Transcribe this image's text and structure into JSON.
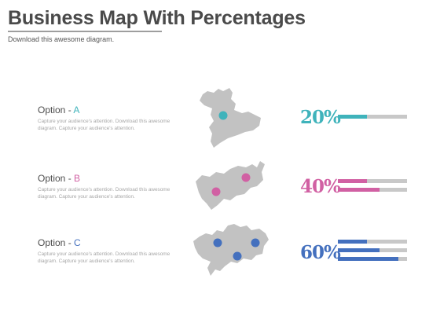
{
  "header": {
    "title": "Business Map With Percentages",
    "subtitle": "Download this awesome diagram."
  },
  "colors": {
    "a": "#3fb3bb",
    "b": "#d160a3",
    "c": "#4470be",
    "map": "#c2c2c2",
    "track": "#c8c8c8"
  },
  "options": [
    {
      "label": "Option - ",
      "letter": "A",
      "desc": "Capture your audience's attention. Download this awesome diagram. Capture your audience's attention.",
      "percent": "20%",
      "bars": [
        0.42
      ],
      "pins": 1
    },
    {
      "label": "Option - ",
      "letter": "B",
      "desc": "Capture your audience's attention. Download this awesome diagram. Capture your audience's attention.",
      "percent": "40%",
      "bars": [
        0.42,
        0.6
      ],
      "pins": 2
    },
    {
      "label": "Option - ",
      "letter": "C",
      "desc": "Capture your audience's attention. Download this awesome diagram. Capture your audience's attention.",
      "percent": "60%",
      "bars": [
        0.42,
        0.6,
        0.88
      ],
      "pins": 3
    }
  ]
}
